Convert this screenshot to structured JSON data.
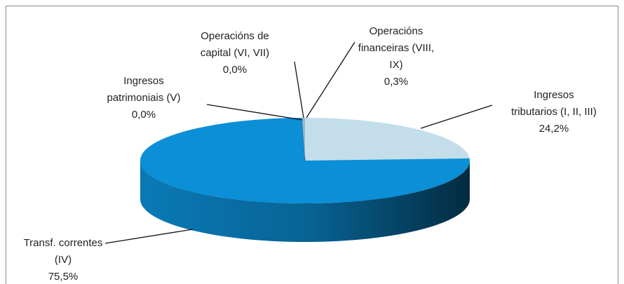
{
  "chart_data": {
    "type": "pie3d",
    "categories": [
      [
        "Ingresos",
        "tributarios (I, II, III)"
      ],
      [
        "Transf. correntes",
        "(IV)"
      ],
      [
        "Ingresos",
        "patrimoniais (V)"
      ],
      [
        "Operacións de",
        "capital (VI, VII)"
      ],
      [
        "Operacións",
        "financeiras (VIII,",
        "IX)"
      ]
    ],
    "values": [
      24.2,
      75.5,
      0.0,
      0.0,
      0.3
    ],
    "value_labels": [
      "24,2%",
      "75,5%",
      "0,0%",
      "0,0%",
      "0,3%"
    ],
    "colors": [
      "#c3deea",
      "#0b8fd6",
      "#1f6fae",
      "#2a5a8a",
      "#8fb8d4"
    ]
  }
}
